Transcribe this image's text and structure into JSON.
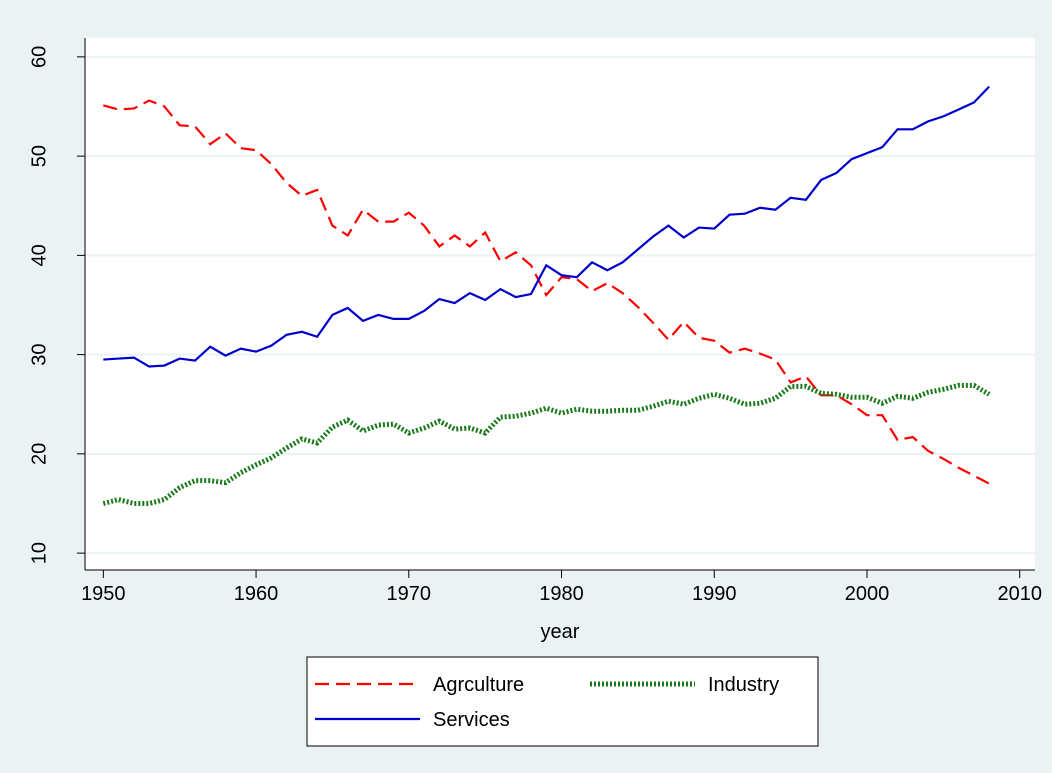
{
  "chart_data": {
    "type": "line",
    "x_label": "year",
    "x": [
      1950,
      1951,
      1952,
      1953,
      1954,
      1955,
      1956,
      1957,
      1958,
      1959,
      1960,
      1961,
      1962,
      1963,
      1964,
      1965,
      1966,
      1967,
      1968,
      1969,
      1970,
      1971,
      1972,
      1973,
      1974,
      1975,
      1976,
      1977,
      1978,
      1979,
      1980,
      1981,
      1982,
      1983,
      1984,
      1985,
      1986,
      1987,
      1988,
      1989,
      1990,
      1991,
      1992,
      1993,
      1994,
      1995,
      1996,
      1997,
      1998,
      1999,
      2000,
      2001,
      2002,
      2003,
      2004,
      2005,
      2006,
      2007,
      2008
    ],
    "series": [
      {
        "name": "Agrculture",
        "color": "#ff0000",
        "style": "dashed",
        "values": [
          55.1,
          54.7,
          54.8,
          55.6,
          55.0,
          53.1,
          53.0,
          51.2,
          52.3,
          50.8,
          50.6,
          49.2,
          47.3,
          46.0,
          46.6,
          43.0,
          42.0,
          44.6,
          43.4,
          43.4,
          44.3,
          43.0,
          40.9,
          42.0,
          40.9,
          42.3,
          39.4,
          40.3,
          39.0,
          36.0,
          37.8,
          37.6,
          36.4,
          37.2,
          36.2,
          34.8,
          33.2,
          31.5,
          33.3,
          31.7,
          31.4,
          30.2,
          30.6,
          30.1,
          29.5,
          27.2,
          27.8,
          25.9,
          25.9,
          25.0,
          23.9,
          23.9,
          21.4,
          21.7,
          20.3,
          19.5,
          18.6,
          17.8,
          17.0
        ]
      },
      {
        "name": "Industry",
        "color": "#1a7a1a",
        "style": "dotted",
        "values": [
          15.0,
          15.4,
          15.0,
          15.0,
          15.4,
          16.6,
          17.3,
          17.3,
          17.1,
          18.1,
          18.9,
          19.6,
          20.6,
          21.5,
          21.1,
          22.7,
          23.4,
          22.3,
          22.9,
          23.0,
          22.1,
          22.6,
          23.3,
          22.5,
          22.6,
          22.1,
          23.7,
          23.8,
          24.1,
          24.6,
          24.1,
          24.5,
          24.3,
          24.3,
          24.4,
          24.4,
          24.8,
          25.3,
          25.0,
          25.6,
          26.0,
          25.6,
          25.0,
          25.1,
          25.6,
          26.8,
          26.8,
          26.1,
          26.0,
          25.7,
          25.7,
          25.1,
          25.8,
          25.6,
          26.2,
          26.5,
          26.9,
          26.9,
          26.0
        ]
      },
      {
        "name": "Services",
        "color": "#0000cc",
        "style": "solid",
        "values": [
          29.5,
          29.6,
          29.7,
          28.8,
          28.9,
          29.6,
          29.4,
          30.8,
          29.9,
          30.6,
          30.3,
          30.9,
          32.0,
          32.3,
          31.8,
          34.0,
          34.7,
          33.4,
          34.0,
          33.6,
          33.6,
          34.4,
          35.6,
          35.2,
          36.2,
          35.5,
          36.6,
          35.8,
          36.1,
          39.0,
          38.0,
          37.8,
          39.3,
          38.5,
          39.3,
          40.6,
          41.9,
          43.0,
          41.8,
          42.8,
          42.7,
          44.1,
          44.2,
          44.8,
          44.6,
          45.8,
          45.6,
          47.6,
          48.3,
          49.7,
          50.3,
          50.9,
          52.7,
          52.7,
          53.5,
          54.0,
          54.7,
          55.4,
          57.0
        ]
      }
    ],
    "xlim": [
      1948.8,
      2011
    ],
    "xticks": [
      1950,
      1960,
      1970,
      1980,
      1990,
      2000,
      2010
    ],
    "ylim": [
      8.3,
      61.9
    ],
    "yticks": [
      10,
      20,
      30,
      40,
      50,
      60
    ],
    "grid": true,
    "legend": "bottom"
  }
}
